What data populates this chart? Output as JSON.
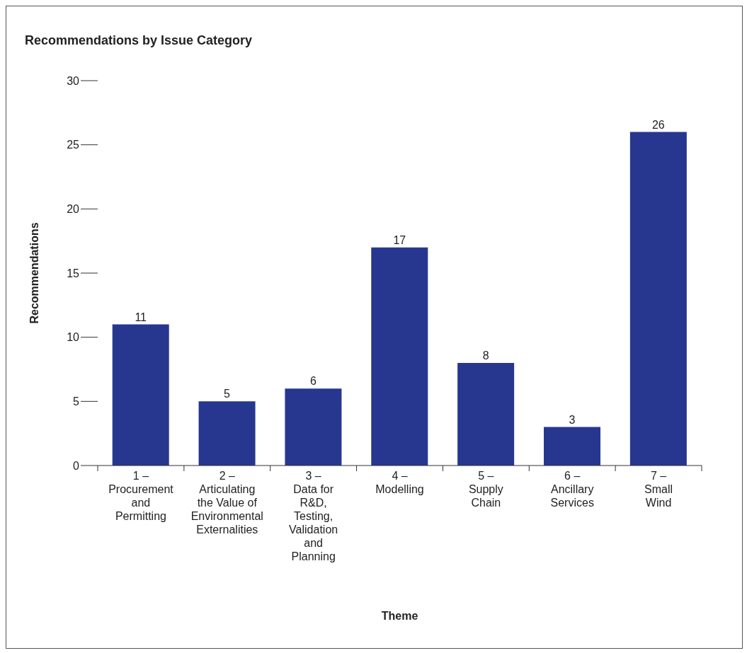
{
  "chart_data": {
    "type": "bar",
    "title": "Recommendations by Issue Category",
    "xlabel": "Theme",
    "ylabel": "Recommendations",
    "categories": [
      "1 –\nProcurement\nand\nPermitting",
      "2 –\nArticulating\nthe Value of\nEnvironmental\nExternalities",
      "3 –\nData for\nR&D,\nTesting,\nValidation\nand\nPlanning",
      "4 –\nModelling",
      "5 –\nSupply\nChain",
      "6 –\nAncillary\nServices",
      "7 –\nSmall\nWind"
    ],
    "values": [
      11,
      5,
      6,
      17,
      8,
      3,
      26
    ],
    "color": "#27378f",
    "ylim": [
      0,
      30
    ],
    "yticks": [
      0,
      5,
      10,
      15,
      20,
      25,
      30
    ],
    "grid": false,
    "legend": false,
    "data_labels": true
  }
}
